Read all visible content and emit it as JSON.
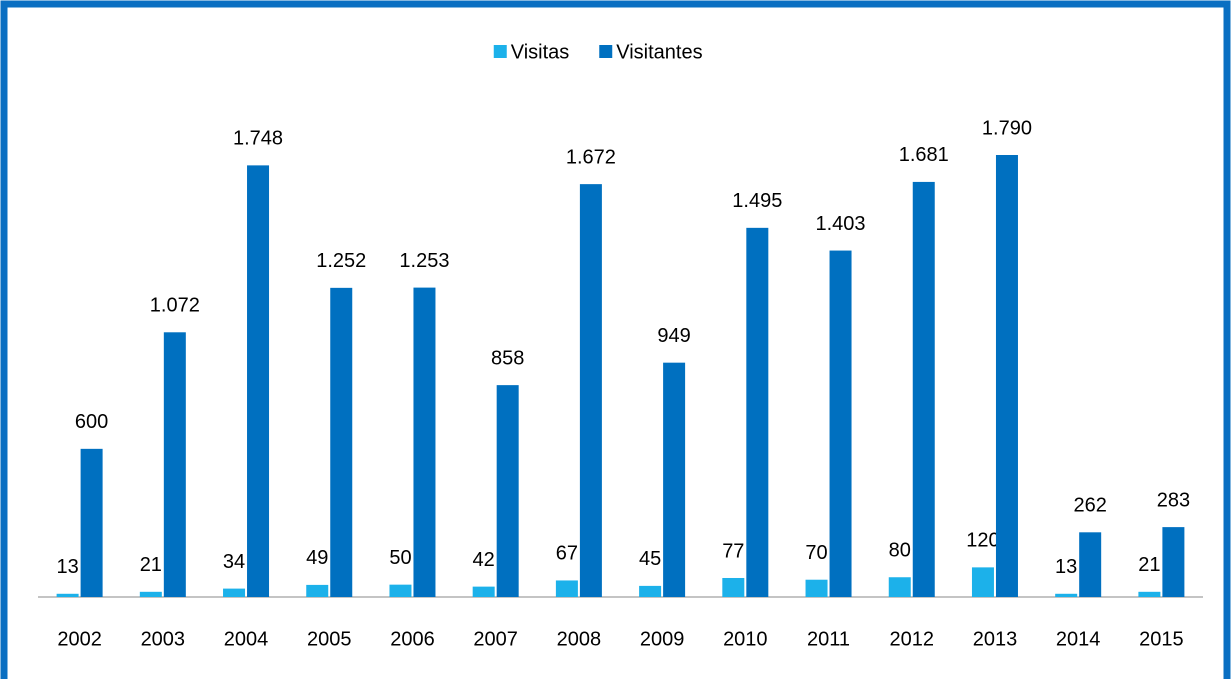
{
  "chart_data": {
    "type": "bar",
    "categories": [
      "2002",
      "2003",
      "2004",
      "2005",
      "2006",
      "2007",
      "2008",
      "2009",
      "2010",
      "2011",
      "2012",
      "2013",
      "2014",
      "2015"
    ],
    "series": [
      {
        "name": "Visitas",
        "color": "#1cb1ea",
        "values": [
          13,
          21,
          34,
          49,
          50,
          42,
          67,
          45,
          77,
          70,
          80,
          120,
          13,
          21
        ]
      },
      {
        "name": "Visitantes",
        "color": "#0070c0",
        "values": [
          600,
          1072,
          1748,
          1252,
          1253,
          858,
          1672,
          949,
          1495,
          1403,
          1681,
          1790,
          262,
          283
        ],
        "value_labels": [
          "600",
          "1.072",
          "1.748",
          "1.252",
          "1.253",
          "858",
          "1.672",
          "949",
          "1.495",
          "1.403",
          "1.681",
          "1.790",
          "262",
          "283"
        ]
      }
    ],
    "legend": "top"
  }
}
